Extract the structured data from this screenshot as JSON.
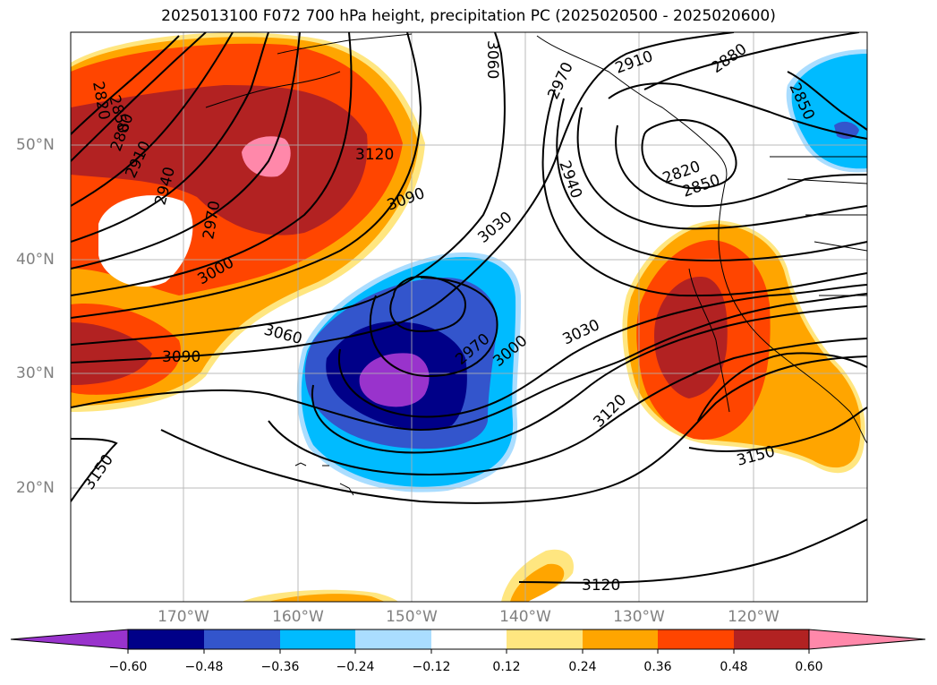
{
  "title": "2025013100 F072 700 hPa height, precipitation PC (2025020500 - 2025020600)",
  "lat_labels": [
    "50°N",
    "40°N",
    "30°N",
    "20°N"
  ],
  "lon_labels": [
    "170°W",
    "160°W",
    "150°W",
    "140°W",
    "130°W",
    "120°W"
  ],
  "colorbar": {
    "ticks": [
      "−0.60",
      "−0.48",
      "−0.36",
      "−0.24",
      "−0.12",
      "0.12",
      "0.24",
      "0.36",
      "0.48",
      "0.60"
    ],
    "colors": [
      "#9933cc",
      "#000088",
      "#3355cc",
      "#00bbff",
      "#aaddff",
      "#ffffff",
      "#ffe680",
      "#ffa500",
      "#ff4500",
      "#b22222",
      "#ff88aa"
    ]
  },
  "contour_labels": [
    "2820",
    "2850",
    "2880",
    "2910",
    "2940",
    "2970",
    "3000",
    "3030",
    "3060",
    "3090",
    "3120",
    "3150"
  ]
}
